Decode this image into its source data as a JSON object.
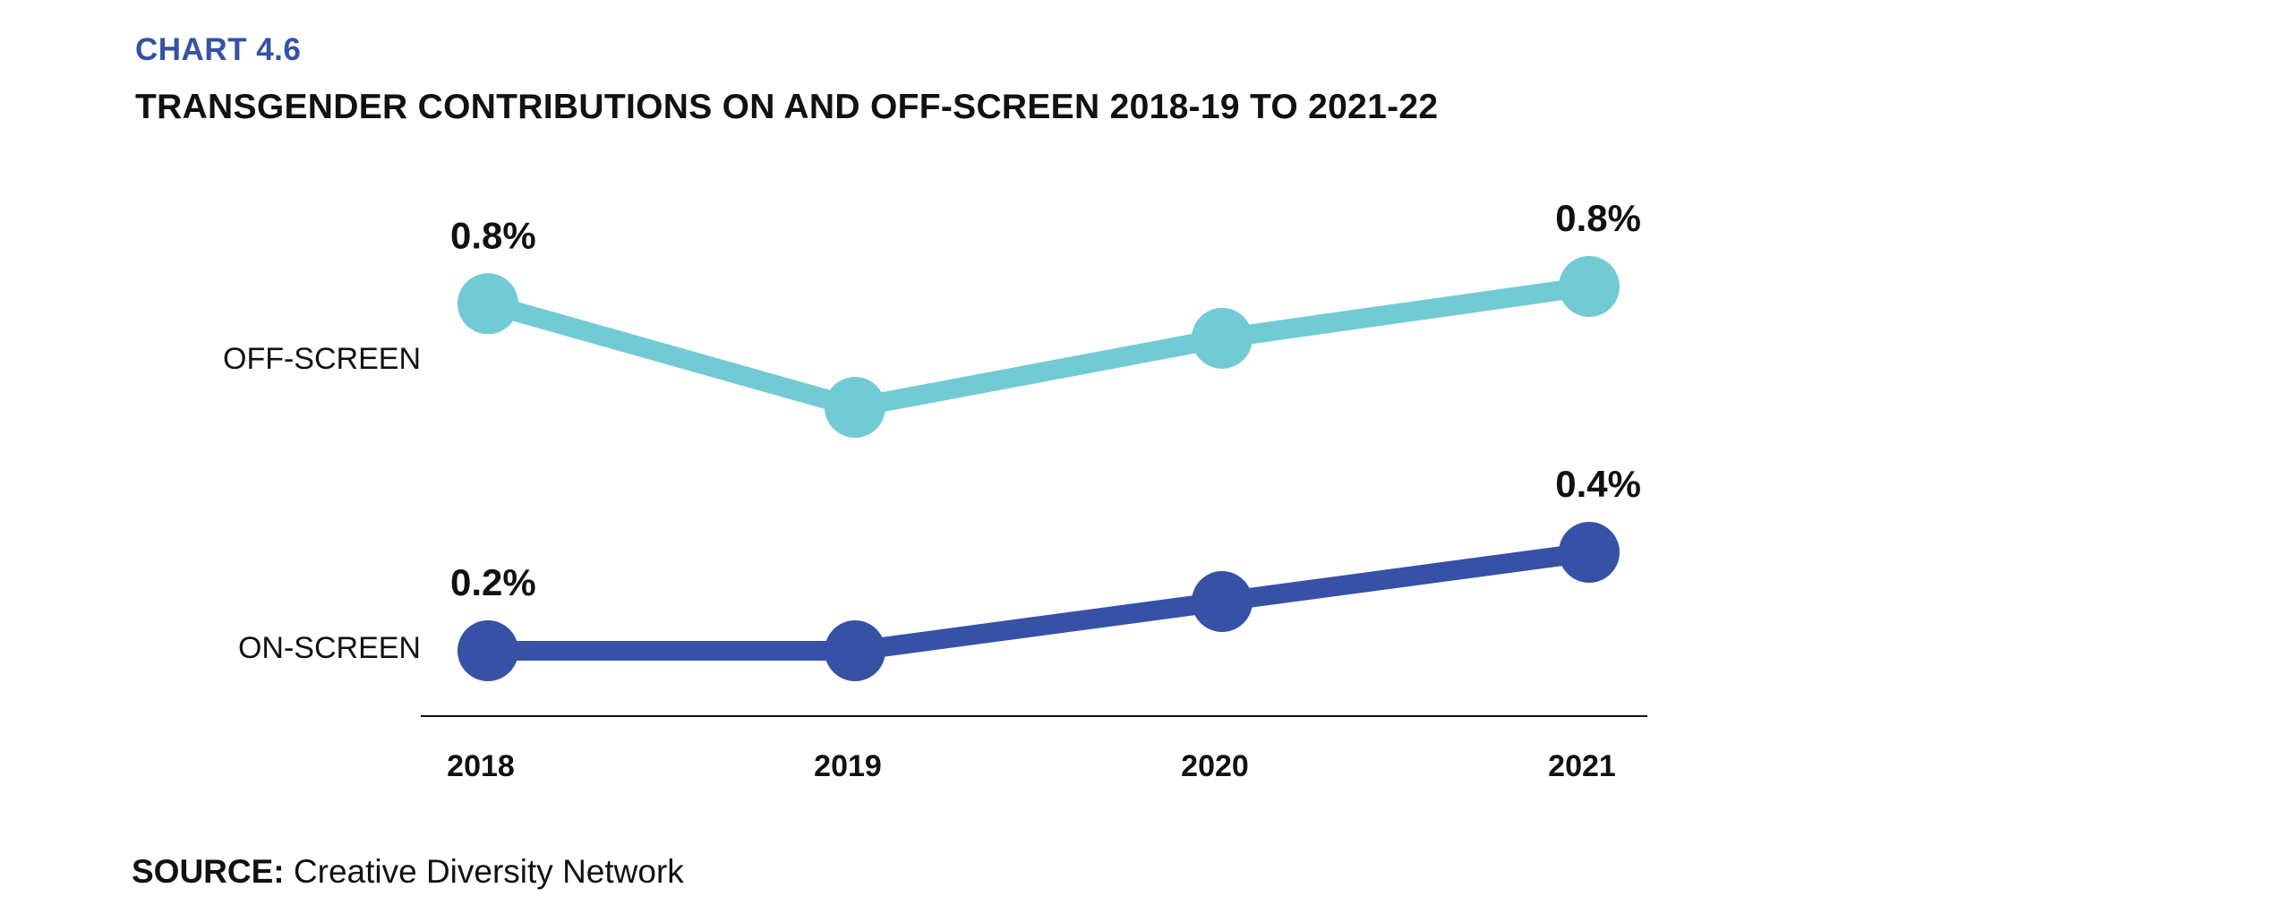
{
  "header": {
    "chart_number": "CHART 4.6",
    "title": "TRANSGENDER CONTRIBUTIONS ON AND OFF-SCREEN 2018-19 TO 2021-22"
  },
  "footer": {
    "source_prefix": "SOURCE:",
    "source_text": " Creative Diversity Network"
  },
  "colors": {
    "off_screen": "#72cbd4",
    "on_screen": "#3651a5",
    "heading_accent": "#3651a5",
    "axis": "#111111"
  },
  "chart_data": {
    "type": "line",
    "title": "TRANSGENDER CONTRIBUTIONS ON AND OFF-SCREEN 2018-19 TO 2021-22",
    "xlabel": "",
    "ylabel": "",
    "categories": [
      "2018",
      "2019",
      "2020",
      "2021"
    ],
    "grid": false,
    "legend": "left",
    "series": [
      {
        "name": "OFF-SCREEN",
        "values": [
          0.8,
          0.5,
          0.7,
          0.85
        ],
        "labels": [
          "0.8%",
          null,
          null,
          "0.8%"
        ]
      },
      {
        "name": "ON-SCREEN",
        "values": [
          0.2,
          0.2,
          0.3,
          0.4
        ],
        "labels": [
          "0.2%",
          null,
          null,
          "0.4%"
        ]
      }
    ]
  }
}
